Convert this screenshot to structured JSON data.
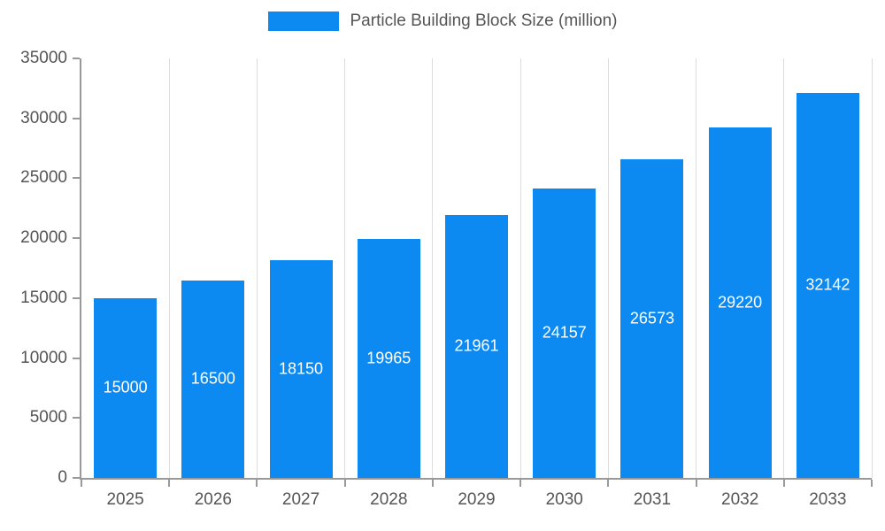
{
  "legend": {
    "label": "Particle Building Block Size (million)"
  },
  "chart_data": {
    "type": "bar",
    "title": "Particle Building Block Size (million)",
    "categories": [
      "2025",
      "2026",
      "2027",
      "2028",
      "2029",
      "2030",
      "2031",
      "2032",
      "2033"
    ],
    "values": [
      15000,
      16500,
      18150,
      19965,
      21961,
      24157,
      26573,
      29220,
      32142
    ],
    "xlabel": "",
    "ylabel": "",
    "ylim": [
      0,
      35000
    ],
    "ytick_step": 5000,
    "ytick_labels": [
      "0",
      "5000",
      "10000",
      "15000",
      "20000",
      "25000",
      "30000",
      "35000"
    ],
    "grid": "vertical",
    "legend_position": "top",
    "bar_color": "#0d8af2",
    "value_label_color": "#ffffff",
    "axis_label_color": "#555555",
    "gridline_color": "#dddddd",
    "axis_line_color": "#999999"
  }
}
